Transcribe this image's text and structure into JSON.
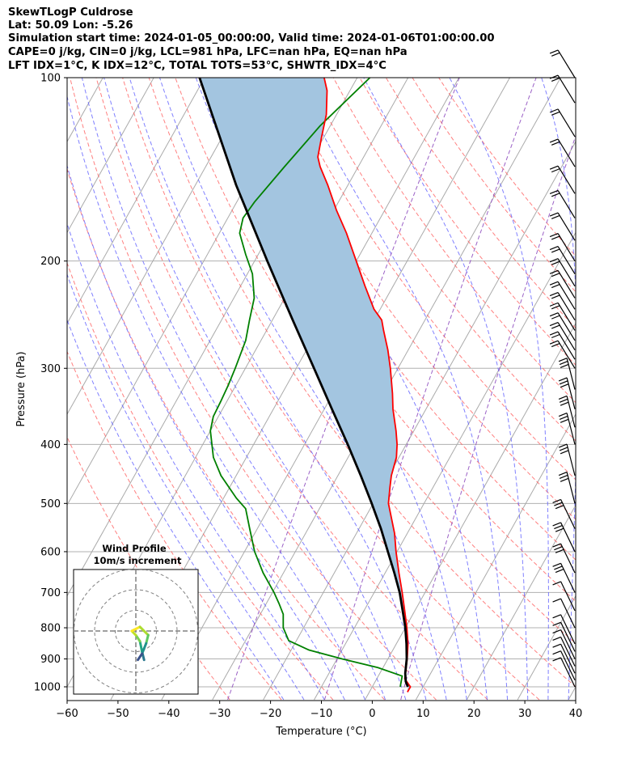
{
  "header": {
    "line1": "SkewTLogP Culdrose",
    "line2": "Lat: 50.09   Lon: -5.26",
    "line3": "Simulation start time: 2024-01-05_00:00:00, Valid time: 2024-01-06T01:00:00.00",
    "line4": "CAPE=0 j/kg, CIN=0 j/kg, LCL=981 hPa, LFC=nan hPa, EQ=nan hPa",
    "line5": "LFT IDX=1°C, K IDX=12°C, TOTAL TOTS=53°C, SHWTR_IDX=4°C"
  },
  "chart_data": {
    "type": "line",
    "subtype": "skew-T log-P",
    "xlabel": "Temperature (°C)",
    "ylabel": "Pressure (hPa)",
    "xlim": [
      -60,
      40
    ],
    "ylim_hpa": [
      1050,
      100
    ],
    "y_scale": "log",
    "grid": true,
    "x_ticks": [
      -60,
      -50,
      -40,
      -30,
      -20,
      -10,
      0,
      10,
      20,
      30,
      40
    ],
    "x_tick_labels": [
      "−60",
      "−50",
      "−40",
      "−30",
      "−20",
      "−10",
      "0",
      "10",
      "20",
      "30",
      "40"
    ],
    "y_ticks": [
      1000,
      900,
      800,
      700,
      600,
      500,
      400,
      300,
      200,
      100
    ],
    "y_tick_labels": [
      "1000",
      "900",
      "800",
      "700",
      "600",
      "500",
      "400",
      "300",
      "200",
      "100"
    ],
    "series": [
      {
        "role": "temperature",
        "color": "#ff0000",
        "points": [
          [
            1020,
            7.5
          ],
          [
            1000,
            7.5
          ],
          [
            970,
            5.5
          ],
          [
            940,
            4.8
          ],
          [
            900,
            3.8
          ],
          [
            850,
            2.3
          ],
          [
            800,
            0.3
          ],
          [
            750,
            -2.0
          ],
          [
            700,
            -4.5
          ],
          [
            650,
            -7.3
          ],
          [
            600,
            -10.2
          ],
          [
            560,
            -12.5
          ],
          [
            500,
            -17.0
          ],
          [
            470,
            -18.5
          ],
          [
            450,
            -19.5
          ],
          [
            420,
            -20.5
          ],
          [
            400,
            -21.8
          ],
          [
            380,
            -23.5
          ],
          [
            350,
            -26.5
          ],
          [
            330,
            -28.3
          ],
          [
            300,
            -31.5
          ],
          [
            280,
            -34.0
          ],
          [
            260,
            -37.0
          ],
          [
            250,
            -38.5
          ],
          [
            240,
            -41.2
          ],
          [
            220,
            -45.5
          ],
          [
            200,
            -50.0
          ],
          [
            180,
            -55.0
          ],
          [
            165,
            -59.5
          ],
          [
            150,
            -64.0
          ],
          [
            140,
            -67.5
          ],
          [
            135,
            -69.0
          ],
          [
            125,
            -70.5
          ],
          [
            115,
            -72.0
          ],
          [
            105,
            -74.5
          ],
          [
            100,
            -76.5
          ]
        ]
      },
      {
        "role": "dewpoint",
        "color": "#008000",
        "points": [
          [
            1000,
            5.5
          ],
          [
            960,
            4.7
          ],
          [
            930,
            -1.0
          ],
          [
            900,
            -9.0
          ],
          [
            870,
            -16.5
          ],
          [
            840,
            -21.5
          ],
          [
            800,
            -24.0
          ],
          [
            760,
            -25.5
          ],
          [
            730,
            -27.5
          ],
          [
            700,
            -29.7
          ],
          [
            650,
            -34.0
          ],
          [
            600,
            -38.0
          ],
          [
            550,
            -41.5
          ],
          [
            510,
            -44.5
          ],
          [
            490,
            -47.5
          ],
          [
            450,
            -53.0
          ],
          [
            420,
            -56.5
          ],
          [
            400,
            -58.2
          ],
          [
            380,
            -60.0
          ],
          [
            360,
            -61.0
          ],
          [
            340,
            -61.2
          ],
          [
            320,
            -61.5
          ],
          [
            300,
            -62.0
          ],
          [
            270,
            -63.0
          ],
          [
            250,
            -64.5
          ],
          [
            230,
            -66.0
          ],
          [
            210,
            -69.0
          ],
          [
            195,
            -72.5
          ],
          [
            180,
            -76.0
          ],
          [
            170,
            -77.0
          ],
          [
            160,
            -76.5
          ],
          [
            140,
            -74.5
          ],
          [
            120,
            -72.0
          ],
          [
            100,
            -67.5
          ]
        ]
      },
      {
        "role": "parcel",
        "color": "#000000",
        "points": [
          [
            1000,
            7.0
          ],
          [
            980,
            6.0
          ],
          [
            950,
            5.0
          ],
          [
            900,
            3.7
          ],
          [
            850,
            2.0
          ],
          [
            800,
            0.0
          ],
          [
            750,
            -2.4
          ],
          [
            700,
            -5.0
          ],
          [
            650,
            -8.2
          ],
          [
            600,
            -11.8
          ],
          [
            550,
            -15.7
          ],
          [
            500,
            -20.3
          ],
          [
            450,
            -25.5
          ],
          [
            400,
            -31.5
          ],
          [
            350,
            -38.5
          ],
          [
            300,
            -46.5
          ],
          [
            250,
            -56.0
          ],
          [
            200,
            -67.5
          ],
          [
            150,
            -82.0
          ],
          [
            100,
            -101.0
          ]
        ]
      }
    ],
    "shading": {
      "role": "CIN area between parcel and temperature",
      "color": "#a3c5e0"
    },
    "reference_lines": {
      "isotherms": {
        "color": "#aaaaaa"
      },
      "dry_adiabats": {
        "color": "#ff6060"
      },
      "moist_adiabats": {
        "color": "#6060ff"
      },
      "mixing_ratio": {
        "color": "#9050c0"
      }
    },
    "wind_barbs": {
      "color": "#000000",
      "levels_hpa": [
        1000,
        975,
        950,
        925,
        900,
        875,
        850,
        800,
        750,
        700,
        650,
        600,
        550,
        500,
        450,
        400,
        375,
        350,
        325,
        300,
        290,
        280,
        270,
        260,
        250,
        240,
        230,
        220,
        210,
        200,
        185,
        170,
        155,
        140,
        125,
        110,
        100
      ]
    },
    "hodograph": {
      "title": "Wind Profile",
      "subtitle": "10m/s increment",
      "rings_ms": [
        10,
        20,
        30
      ],
      "colormap": "viridis",
      "points_uv": [
        [
          4,
          -14
        ],
        [
          3,
          -10
        ],
        [
          2,
          -5
        ],
        [
          0,
          -2
        ],
        [
          -2,
          0
        ],
        [
          2,
          2
        ],
        [
          6,
          -2
        ],
        [
          5,
          -6
        ],
        [
          3,
          -11
        ],
        [
          1,
          -14
        ]
      ]
    }
  }
}
